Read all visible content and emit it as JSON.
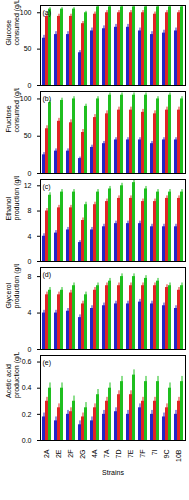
{
  "chart_data": [
    {
      "type": "bar",
      "title": "(a)",
      "ylabel": "Glucose consumed (g/L)",
      "tick_labels": "y",
      "categories": [
        "2A",
        "2E",
        "2F",
        "2G",
        "4A",
        "7A",
        "7D",
        "7E",
        "7F",
        "7I",
        "9C",
        "10B"
      ],
      "ylim": [
        0,
        110
      ],
      "yticks": [
        0,
        50,
        100
      ],
      "series": [
        {
          "color": "#2323c8",
          "values": [
            65,
            70,
            70,
            45,
            75,
            78,
            80,
            80,
            75,
            70,
            72,
            75
          ],
          "errors": [
            4,
            4,
            4,
            3,
            4,
            4,
            4,
            4,
            4,
            4,
            4,
            4
          ]
        },
        {
          "color": "#e02424",
          "values": [
            95,
            95,
            95,
            85,
            98,
            100,
            100,
            100,
            100,
            98,
            100,
            100
          ],
          "errors": [
            3,
            3,
            3,
            3,
            3,
            3,
            3,
            3,
            3,
            3,
            3,
            3
          ]
        },
        {
          "color": "#1fbf1f",
          "values": [
            105,
            105,
            105,
            100,
            108,
            108,
            108,
            108,
            108,
            108,
            108,
            108
          ],
          "errors": [
            2,
            2,
            2,
            2,
            2,
            2,
            2,
            2,
            2,
            2,
            2,
            2
          ]
        }
      ]
    },
    {
      "type": "bar",
      "title": "(b)",
      "ylabel": "Fructose consumed (g/L)",
      "tick_labels": "y",
      "categories": [
        "2A",
        "2E",
        "2F",
        "2G",
        "4A",
        "7A",
        "7D",
        "7E",
        "7F",
        "7I",
        "9C",
        "10B"
      ],
      "ylim": [
        0,
        110
      ],
      "yticks": [
        0,
        50,
        100
      ],
      "series": [
        {
          "color": "#2323c8",
          "values": [
            25,
            30,
            30,
            20,
            35,
            40,
            45,
            45,
            45,
            40,
            45,
            45
          ],
          "errors": [
            3,
            3,
            3,
            2,
            3,
            3,
            3,
            3,
            3,
            3,
            3,
            3
          ]
        },
        {
          "color": "#e02424",
          "values": [
            60,
            70,
            68,
            55,
            75,
            80,
            85,
            85,
            82,
            80,
            85,
            85
          ],
          "errors": [
            4,
            4,
            4,
            4,
            4,
            4,
            4,
            4,
            4,
            4,
            4,
            4
          ]
        },
        {
          "color": "#1fbf1f",
          "values": [
            95,
            98,
            100,
            90,
            100,
            105,
            105,
            105,
            105,
            100,
            105,
            100
          ],
          "errors": [
            3,
            3,
            3,
            3,
            3,
            3,
            3,
            3,
            3,
            3,
            3,
            3
          ]
        }
      ]
    },
    {
      "type": "bar",
      "title": "(c)",
      "ylabel": "Ethanol production (g/L)",
      "tick_labels": "y",
      "categories": [
        "2A",
        "2E",
        "2F",
        "2G",
        "4A",
        "7A",
        "7D",
        "7E",
        "7F",
        "7I",
        "9C",
        "10B"
      ],
      "ylim": [
        0,
        13
      ],
      "yticks": [
        0,
        4,
        8,
        12
      ],
      "series": [
        {
          "color": "#2323c8",
          "values": [
            4,
            4.5,
            5,
            3,
            5,
            5.5,
            6,
            6,
            6,
            5.5,
            5.5,
            5.5
          ],
          "errors": [
            0.4,
            0.4,
            0.4,
            0.3,
            0.4,
            0.4,
            0.4,
            0.4,
            0.4,
            0.4,
            0.4,
            0.4
          ]
        },
        {
          "color": "#e02424",
          "values": [
            8,
            8.5,
            8.5,
            6.5,
            9,
            9.5,
            10,
            10,
            9.5,
            9.5,
            10,
            10
          ],
          "errors": [
            0.4,
            0.4,
            0.4,
            0.4,
            0.4,
            0.4,
            0.4,
            0.4,
            0.4,
            0.4,
            0.4,
            0.4
          ]
        },
        {
          "color": "#1fbf1f",
          "values": [
            10.5,
            11,
            11,
            9,
            11,
            11.5,
            12,
            12.5,
            11.5,
            11,
            11,
            11
          ],
          "errors": [
            0.4,
            0.4,
            0.4,
            0.4,
            0.4,
            0.4,
            0.4,
            0.4,
            0.4,
            0.4,
            0.4,
            0.4
          ]
        }
      ]
    },
    {
      "type": "bar",
      "title": "(d)",
      "ylabel": "Glycerol production (g/L)",
      "tick_labels": "y",
      "categories": [
        "2A",
        "2E",
        "2F",
        "2G",
        "4A",
        "7A",
        "7D",
        "7E",
        "7F",
        "7I",
        "9C",
        "10B"
      ],
      "ylim": [
        0,
        9
      ],
      "yticks": [
        0,
        4,
        8
      ],
      "series": [
        {
          "color": "#2323c8",
          "values": [
            4,
            4,
            4.2,
            3.5,
            4.5,
            4.8,
            5,
            5,
            5.2,
            5,
            4.8,
            4.5
          ],
          "errors": [
            0.3,
            0.3,
            0.3,
            0.3,
            0.3,
            0.3,
            0.3,
            0.3,
            0.3,
            0.3,
            0.3,
            0.3
          ]
        },
        {
          "color": "#e02424",
          "values": [
            6,
            6,
            6.2,
            5,
            6.5,
            7,
            7,
            7,
            7,
            7,
            6.8,
            6.5
          ],
          "errors": [
            0.3,
            0.3,
            0.3,
            0.3,
            0.3,
            0.3,
            0.3,
            0.3,
            0.3,
            0.3,
            0.3,
            0.3
          ]
        },
        {
          "color": "#1fbf1f",
          "values": [
            6.5,
            6.5,
            7,
            6,
            7,
            7.5,
            8,
            8,
            7.8,
            7.5,
            7,
            7
          ],
          "errors": [
            0.3,
            0.3,
            0.3,
            0.3,
            0.3,
            0.3,
            0.3,
            0.3,
            0.3,
            0.3,
            0.3,
            0.3
          ]
        }
      ]
    },
    {
      "type": "bar",
      "title": "(e)",
      "ylabel": "Acetic acid production (g/L)",
      "xlabel": "Strains",
      "categories": [
        "2A",
        "2E",
        "2F",
        "2G",
        "4A",
        "7A",
        "7D",
        "7E",
        "7F",
        "7I",
        "9C",
        "10B"
      ],
      "ylim": [
        0,
        0.65
      ],
      "yticks": [
        {
          "value": 0,
          "label": "0.0"
        },
        0.2,
        0.4,
        0.6
      ],
      "series": [
        {
          "color": "#2323c8",
          "values": [
            0.18,
            0.15,
            0.2,
            0.12,
            0.15,
            0.2,
            0.22,
            0.2,
            0.25,
            0.2,
            0.18,
            0.2
          ],
          "errors": [
            0.03,
            0.03,
            0.03,
            0.03,
            0.03,
            0.03,
            0.03,
            0.03,
            0.03,
            0.03,
            0.03,
            0.03
          ]
        },
        {
          "color": "#e02424",
          "values": [
            0.3,
            0.25,
            0.22,
            0.18,
            0.25,
            0.3,
            0.35,
            0.35,
            0.3,
            0.3,
            0.25,
            0.3
          ],
          "errors": [
            0.03,
            0.03,
            0.03,
            0.03,
            0.03,
            0.03,
            0.03,
            0.03,
            0.03,
            0.03,
            0.03,
            0.03
          ]
        },
        {
          "color": "#1fbf1f",
          "values": [
            0.4,
            0.4,
            0.3,
            0.25,
            0.35,
            0.4,
            0.45,
            0.5,
            0.45,
            0.45,
            0.4,
            0.45
          ],
          "errors": [
            0.04,
            0.04,
            0.04,
            0.04,
            0.04,
            0.04,
            0.04,
            0.04,
            0.04,
            0.04,
            0.04,
            0.04
          ]
        }
      ]
    }
  ]
}
